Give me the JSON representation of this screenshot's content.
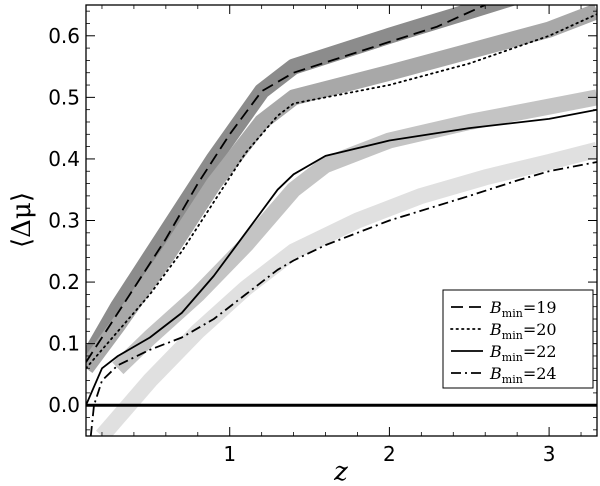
{
  "chart_data": {
    "type": "line",
    "xlabel": "z",
    "ylabel": "⟨Δμ⟩",
    "xlim": [
      0.1,
      3.3
    ],
    "ylim": [
      -0.05,
      0.65
    ],
    "x_ticks": [
      {
        "value": 1,
        "label": "1"
      },
      {
        "value": 2,
        "label": "2"
      },
      {
        "value": 3,
        "label": "3"
      }
    ],
    "y_ticks": [
      {
        "value": 0.0,
        "label": "0.0"
      },
      {
        "value": 0.1,
        "label": "0.1"
      },
      {
        "value": 0.2,
        "label": "0.2"
      },
      {
        "value": 0.3,
        "label": "0.3"
      },
      {
        "value": 0.4,
        "label": "0.4"
      },
      {
        "value": 0.5,
        "label": "0.5"
      },
      {
        "value": 0.6,
        "label": "0.6"
      }
    ],
    "grid": false,
    "legend_position": "lower-right",
    "zero_line": 0.0,
    "bands": [
      {
        "color": "#8c8c8c",
        "x": [
          0.1,
          0.3,
          0.6,
          0.9,
          1.2,
          1.4,
          2.0,
          2.5,
          3.0,
          3.3
        ],
        "y": [
          0.07,
          0.16,
          0.28,
          0.4,
          0.51,
          0.55,
          0.6,
          0.64,
          0.68,
          0.7
        ]
      },
      {
        "color": "#a8a8a8",
        "x": [
          0.1,
          0.3,
          0.6,
          0.9,
          1.2,
          1.4,
          2.0,
          2.5,
          3.0,
          3.3
        ],
        "y": [
          0.06,
          0.13,
          0.24,
          0.36,
          0.46,
          0.5,
          0.54,
          0.575,
          0.61,
          0.64
        ]
      },
      {
        "color": "#c4c4c4",
        "x": [
          0.3,
          0.5,
          0.8,
          1.1,
          1.4,
          1.6,
          2.0,
          2.5,
          3.0,
          3.3
        ],
        "y": [
          0.06,
          0.11,
          0.18,
          0.26,
          0.35,
          0.39,
          0.43,
          0.46,
          0.485,
          0.5
        ]
      },
      {
        "color": "#e0e0e0",
        "x": [
          0.2,
          0.5,
          0.8,
          1.1,
          1.4,
          1.8,
          2.2,
          2.6,
          3.0,
          3.3
        ],
        "y": [
          -0.05,
          0.04,
          0.12,
          0.19,
          0.25,
          0.3,
          0.34,
          0.37,
          0.395,
          0.415
        ]
      }
    ],
    "series": [
      {
        "name": "B_min=19",
        "style": "dashed",
        "color": "#000000",
        "x": [
          0.1,
          0.2,
          0.4,
          0.6,
          0.8,
          1.0,
          1.2,
          1.4,
          1.7,
          2.0,
          2.3,
          2.6
        ],
        "y": [
          0.07,
          0.11,
          0.19,
          0.27,
          0.36,
          0.44,
          0.51,
          0.54,
          0.565,
          0.59,
          0.615,
          0.65
        ]
      },
      {
        "name": "B_min=20",
        "style": "dotted",
        "color": "#000000",
        "x": [
          0.1,
          0.3,
          0.5,
          0.7,
          0.9,
          1.1,
          1.3,
          1.4,
          1.7,
          2.0,
          2.5,
          3.0,
          3.3
        ],
        "y": [
          0.06,
          0.12,
          0.18,
          0.25,
          0.33,
          0.41,
          0.47,
          0.49,
          0.505,
          0.52,
          0.555,
          0.6,
          0.635
        ]
      },
      {
        "name": "B_min=22",
        "style": "solid",
        "color": "#000000",
        "x": [
          0.1,
          0.2,
          0.3,
          0.5,
          0.7,
          0.9,
          1.1,
          1.3,
          1.4,
          1.6,
          2.0,
          2.5,
          3.0,
          3.3
        ],
        "y": [
          0.0,
          0.06,
          0.08,
          0.11,
          0.15,
          0.21,
          0.28,
          0.35,
          0.375,
          0.405,
          0.43,
          0.45,
          0.465,
          0.48
        ]
      },
      {
        "name": "B_min=24",
        "style": "dashdot",
        "color": "#000000",
        "x": [
          0.13,
          0.15,
          0.2,
          0.3,
          0.5,
          0.7,
          0.9,
          1.1,
          1.3,
          1.4,
          1.6,
          2.0,
          2.5,
          2.8,
          3.0,
          3.3
        ],
        "y": [
          -0.05,
          0.0,
          0.04,
          0.065,
          0.09,
          0.11,
          0.14,
          0.18,
          0.22,
          0.235,
          0.26,
          0.3,
          0.34,
          0.365,
          0.38,
          0.395
        ]
      }
    ],
    "legend": [
      {
        "base": "B",
        "sub": "min",
        "value": "=19",
        "style": "dashed"
      },
      {
        "base": "B",
        "sub": "min",
        "value": "=20",
        "style": "dotted"
      },
      {
        "base": "B",
        "sub": "min",
        "value": "=22",
        "style": "solid"
      },
      {
        "base": "B",
        "sub": "min",
        "value": "=24",
        "style": "dashdot"
      }
    ]
  }
}
